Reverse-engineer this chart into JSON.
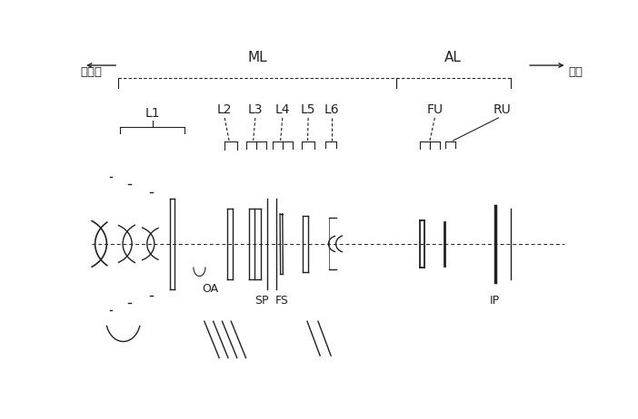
{
  "bg_color": "#ffffff",
  "line_color": "#222222",
  "fig_width": 7.02,
  "fig_height": 4.62,
  "dpi": 100,
  "labels": {
    "left_text": "物体側",
    "right_text": "像側",
    "ML": "ML",
    "AL": "AL",
    "L1": "L1",
    "L2": "L2",
    "L3": "L3",
    "L4": "L4",
    "L5": "L5",
    "L6": "L6",
    "FU": "FU",
    "RU": "RU",
    "OA": "OA",
    "SP": "SP",
    "FS": "FS",
    "IP": "IP"
  },
  "xmin": 0,
  "xmax": 10,
  "ymin": -3.0,
  "ymax": 4.5
}
